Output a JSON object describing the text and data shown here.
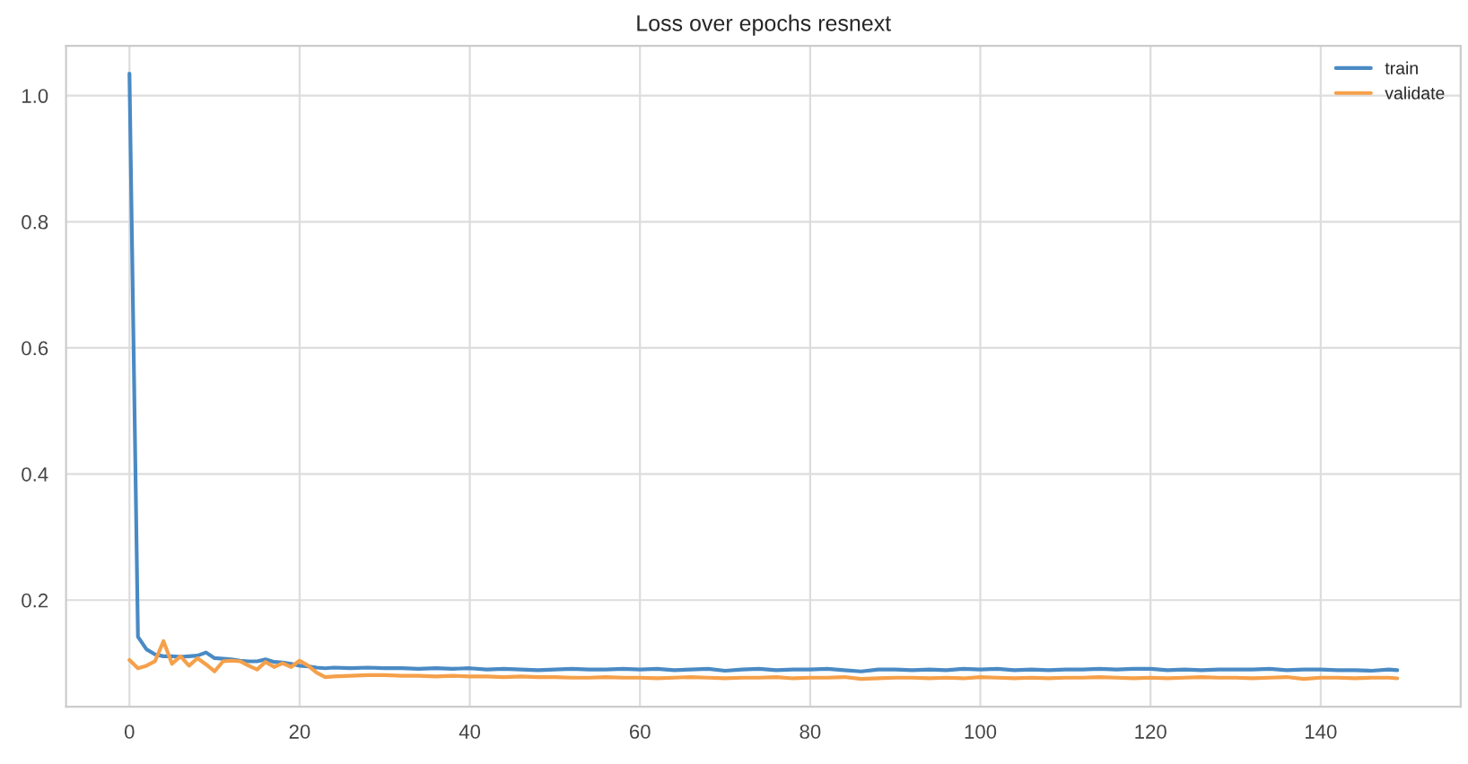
{
  "chart_data": {
    "type": "line",
    "title": "Loss over epochs resnext",
    "x": [
      0,
      1,
      2,
      3,
      4,
      5,
      6,
      7,
      8,
      9,
      10,
      11,
      12,
      13,
      14,
      15,
      16,
      17,
      18,
      19,
      20,
      21,
      22,
      23,
      24,
      26,
      28,
      30,
      32,
      34,
      36,
      38,
      40,
      42,
      44,
      46,
      48,
      50,
      52,
      54,
      56,
      58,
      60,
      62,
      64,
      66,
      68,
      70,
      72,
      74,
      76,
      78,
      80,
      82,
      84,
      86,
      88,
      90,
      92,
      94,
      96,
      98,
      100,
      102,
      104,
      106,
      108,
      110,
      112,
      114,
      116,
      118,
      120,
      122,
      124,
      126,
      128,
      130,
      132,
      134,
      136,
      138,
      140,
      142,
      144,
      146,
      148,
      149
    ],
    "series": [
      {
        "name": "train",
        "color": "#4a8ac4",
        "values": [
          1.035,
          0.142,
          0.122,
          0.114,
          0.111,
          0.111,
          0.11,
          0.111,
          0.112,
          0.117,
          0.108,
          0.107,
          0.106,
          0.104,
          0.103,
          0.103,
          0.106,
          0.102,
          0.101,
          0.099,
          0.096,
          0.095,
          0.093,
          0.092,
          0.093,
          0.092,
          0.093,
          0.092,
          0.092,
          0.091,
          0.092,
          0.091,
          0.092,
          0.09,
          0.091,
          0.09,
          0.089,
          0.09,
          0.091,
          0.09,
          0.09,
          0.091,
          0.09,
          0.091,
          0.089,
          0.09,
          0.091,
          0.088,
          0.09,
          0.091,
          0.089,
          0.09,
          0.09,
          0.091,
          0.089,
          0.087,
          0.09,
          0.09,
          0.089,
          0.09,
          0.089,
          0.091,
          0.09,
          0.091,
          0.089,
          0.09,
          0.089,
          0.09,
          0.09,
          0.091,
          0.09,
          0.091,
          0.091,
          0.089,
          0.09,
          0.089,
          0.09,
          0.09,
          0.09,
          0.091,
          0.089,
          0.09,
          0.09,
          0.089,
          0.089,
          0.088,
          0.09,
          0.089
        ]
      },
      {
        "name": "validate",
        "color": "#f5a04a",
        "values": [
          0.105,
          0.092,
          0.096,
          0.103,
          0.135,
          0.099,
          0.111,
          0.096,
          0.108,
          0.098,
          0.087,
          0.103,
          0.104,
          0.103,
          0.096,
          0.09,
          0.102,
          0.094,
          0.1,
          0.094,
          0.104,
          0.096,
          0.085,
          0.078,
          0.079,
          0.08,
          0.081,
          0.081,
          0.08,
          0.08,
          0.079,
          0.08,
          0.079,
          0.079,
          0.078,
          0.079,
          0.078,
          0.078,
          0.077,
          0.077,
          0.078,
          0.077,
          0.077,
          0.076,
          0.077,
          0.078,
          0.077,
          0.076,
          0.077,
          0.077,
          0.078,
          0.076,
          0.077,
          0.077,
          0.078,
          0.075,
          0.076,
          0.077,
          0.077,
          0.076,
          0.077,
          0.076,
          0.078,
          0.077,
          0.076,
          0.077,
          0.076,
          0.077,
          0.077,
          0.078,
          0.077,
          0.076,
          0.077,
          0.076,
          0.077,
          0.078,
          0.077,
          0.077,
          0.076,
          0.077,
          0.078,
          0.075,
          0.077,
          0.077,
          0.076,
          0.077,
          0.077,
          0.076
        ]
      }
    ],
    "xlim": [
      -7.45,
      156.45
    ],
    "ylim": [
      0.031,
      1.079
    ],
    "xticks": [
      0,
      20,
      40,
      60,
      80,
      100,
      120,
      140
    ],
    "yticks": [
      0.2,
      0.4,
      0.6,
      0.8,
      {
        "value": 1.0,
        "label": "1.0"
      }
    ],
    "grid": true,
    "legend": "top right",
    "line_style": "solid",
    "marker": "none"
  }
}
